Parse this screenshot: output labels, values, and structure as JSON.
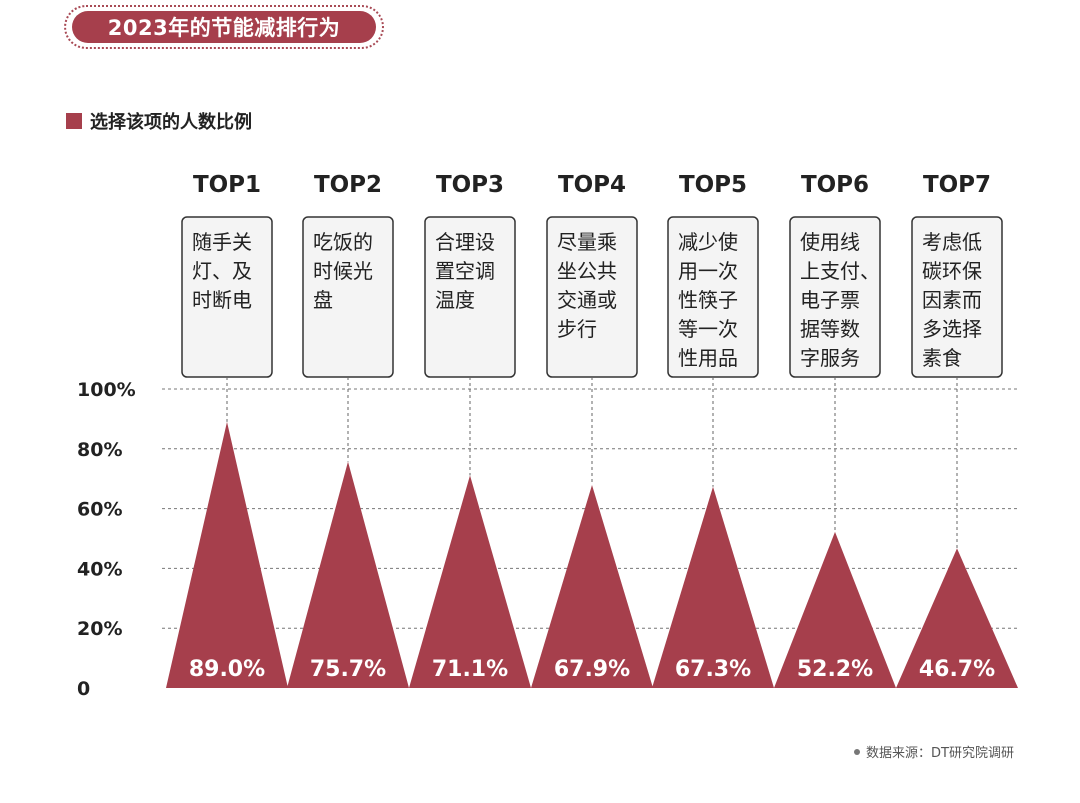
{
  "header": {
    "title": "2023年的节能减排行为"
  },
  "legend": {
    "label": "选择该项的人数比例",
    "color": "#a63f4c"
  },
  "source": {
    "text": "数据来源：DT研究院调研"
  },
  "chart_data": {
    "type": "bar",
    "marker_shape": "triangle",
    "rank_labels": [
      "TOP1",
      "TOP2",
      "TOP3",
      "TOP4",
      "TOP5",
      "TOP6",
      "TOP7"
    ],
    "categories": [
      [
        "随手关",
        "灯、及",
        "时断电"
      ],
      [
        "吃饭的",
        "时候光",
        "盘"
      ],
      [
        "合理设",
        "置空调",
        "温度"
      ],
      [
        "尽量乘",
        "坐公共",
        "交通或",
        "步行"
      ],
      [
        "减少使",
        "用一次",
        "性筷子",
        "等一次",
        "性用品"
      ],
      [
        "使用线",
        "上支付、",
        "电子票",
        "据等数",
        "字服务"
      ],
      [
        "考虑低",
        "碳环保",
        "因素而",
        "多选择",
        "素食"
      ]
    ],
    "values": [
      89.0,
      75.7,
      71.1,
      67.9,
      67.3,
      52.2,
      46.7
    ],
    "value_labels": [
      "89.0%",
      "75.7%",
      "71.1%",
      "67.9%",
      "67.3%",
      "52.2%",
      "46.7%"
    ],
    "y_ticks": [
      "0",
      "20%",
      "40%",
      "60%",
      "80%",
      "100%"
    ],
    "ylim": [
      0,
      100
    ],
    "grid": true,
    "bar_color": "#a63f4c"
  }
}
